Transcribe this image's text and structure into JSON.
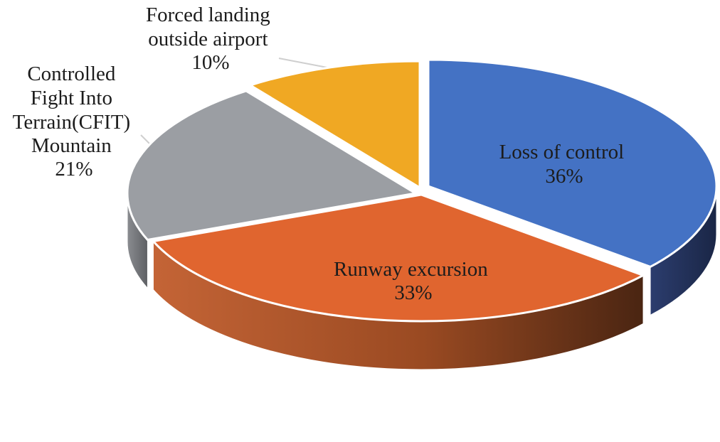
{
  "chart_data": {
    "type": "pie",
    "style": "3d-exploded",
    "slices": [
      {
        "label": "Loss of control",
        "value": 36,
        "display": "36%",
        "color": "#4472c4",
        "label_lines": [
          "Loss of control"
        ]
      },
      {
        "label": "Runway excursion",
        "value": 33,
        "display": "33%",
        "color": "#e0652f",
        "label_lines": [
          "Runway excursion"
        ]
      },
      {
        "label": "Controlled Fight Into Terrain(CFIT) Mountain",
        "value": 21,
        "display": "21%",
        "color": "#9b9ea3",
        "label_lines": [
          "Controlled",
          "Fight Into",
          "Terrain(CFIT)",
          "Mountain"
        ]
      },
      {
        "label": "Forced landing outside airport",
        "value": 10,
        "display": "10%",
        "color": "#f0a823",
        "label_lines": [
          "Forced landing",
          "outside airport"
        ]
      }
    ]
  }
}
